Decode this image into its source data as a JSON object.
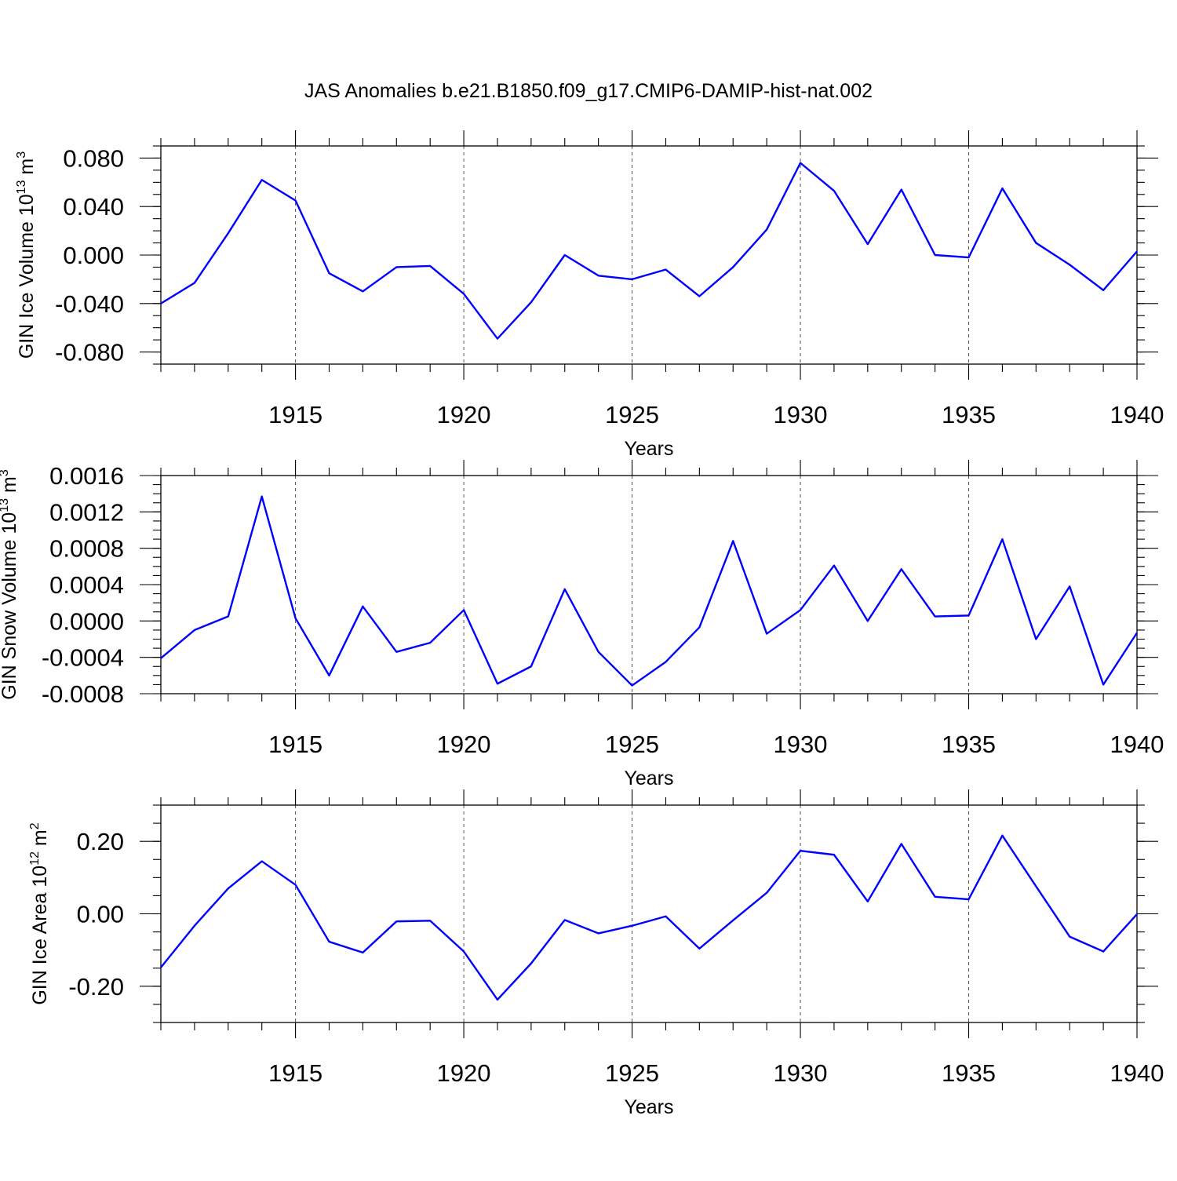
{
  "colors": {
    "series": "#0000ff",
    "grid": "#555555",
    "frame": "#000000"
  },
  "chart_data": [
    {
      "type": "line",
      "title": "JAS Anomalies b.e21.B1850.f09_g17.CMIP6-DAMIP-hist-nat.002",
      "xlabel": "Years",
      "ylabel_main": "GIN Ice Volume 10",
      "ylabel_exp": "13",
      "ylabel_unit": " m",
      "ylabel_unit_exp": "3",
      "xlim": [
        1911,
        1940
      ],
      "ylim": [
        -0.09,
        0.09
      ],
      "x_ticks": [
        1915,
        1920,
        1925,
        1930,
        1935,
        1940
      ],
      "x_tick_labels": [
        "1915",
        "1920",
        "1925",
        "1930",
        "1935",
        "1940"
      ],
      "y_ticks": [
        -0.08,
        -0.04,
        0.0,
        0.04,
        0.08
      ],
      "y_tick_labels": [
        "-0.080",
        "-0.040",
        "0.000",
        "0.040",
        "0.080"
      ],
      "y_minor_step": 0.01,
      "grid": "vertical dashed at major x ticks",
      "series": [
        {
          "name": "GIN Ice Volume",
          "x": [
            1911,
            1912,
            1913,
            1914,
            1915,
            1916,
            1917,
            1918,
            1919,
            1920,
            1921,
            1922,
            1923,
            1924,
            1925,
            1926,
            1927,
            1928,
            1929,
            1930,
            1931,
            1932,
            1933,
            1934,
            1935,
            1936,
            1937,
            1938,
            1939,
            1940
          ],
          "values": [
            -0.04,
            -0.023,
            0.018,
            0.062,
            0.045,
            -0.015,
            -0.03,
            -0.01,
            -0.009,
            -0.032,
            -0.069,
            -0.039,
            0.0,
            -0.017,
            -0.02,
            -0.012,
            -0.034,
            -0.01,
            0.021,
            0.076,
            0.053,
            0.009,
            0.054,
            0.0,
            -0.002,
            0.055,
            0.01,
            -0.008,
            -0.029,
            0.003
          ]
        }
      ]
    },
    {
      "type": "line",
      "title": "",
      "xlabel": "Years",
      "ylabel_main": "GIN Snow Volume 10",
      "ylabel_exp": "13",
      "ylabel_unit": " m",
      "ylabel_unit_exp": "3",
      "xlim": [
        1911,
        1940
      ],
      "ylim": [
        -0.0008,
        0.0016
      ],
      "x_ticks": [
        1915,
        1920,
        1925,
        1930,
        1935,
        1940
      ],
      "x_tick_labels": [
        "1915",
        "1920",
        "1925",
        "1930",
        "1935",
        "1940"
      ],
      "y_ticks": [
        -0.0008,
        -0.0004,
        0.0,
        0.0004,
        0.0008,
        0.0012,
        0.0016
      ],
      "y_tick_labels": [
        "-0.0008",
        "-0.0004",
        "0.0000",
        "0.0004",
        "0.0008",
        "0.0012",
        "0.0016"
      ],
      "y_minor_step": 0.0001,
      "grid": "vertical dashed at major x ticks",
      "series": [
        {
          "name": "GIN Snow Volume",
          "x": [
            1911,
            1912,
            1913,
            1914,
            1915,
            1916,
            1917,
            1918,
            1919,
            1920,
            1921,
            1922,
            1923,
            1924,
            1925,
            1926,
            1927,
            1928,
            1929,
            1930,
            1931,
            1932,
            1933,
            1934,
            1935,
            1936,
            1937,
            1938,
            1939,
            1940
          ],
          "values": [
            -0.00041,
            -0.0001,
            5e-05,
            0.00137,
            3e-05,
            -0.0006,
            0.00016,
            -0.00034,
            -0.00024,
            0.00012,
            -0.00069,
            -0.0005,
            0.00035,
            -0.00034,
            -0.00071,
            -0.00045,
            -7e-05,
            0.00088,
            -0.00014,
            0.00012,
            0.00061,
            0.0,
            0.00057,
            5e-05,
            6e-05,
            0.0009,
            -0.0002,
            0.00038,
            -0.0007,
            -0.00013
          ]
        }
      ]
    },
    {
      "type": "line",
      "title": "",
      "xlabel": "Years",
      "ylabel_main": "GIN Ice Area 10",
      "ylabel_exp": "12",
      "ylabel_unit": " m",
      "ylabel_unit_exp": "2",
      "xlim": [
        1911,
        1940
      ],
      "ylim": [
        -0.3,
        0.3
      ],
      "x_ticks": [
        1915,
        1920,
        1925,
        1930,
        1935,
        1940
      ],
      "x_tick_labels": [
        "1915",
        "1920",
        "1925",
        "1930",
        "1935",
        "1940"
      ],
      "y_ticks": [
        -0.2,
        0.0,
        0.2
      ],
      "y_tick_labels": [
        "-0.20",
        "0.00",
        "0.20"
      ],
      "y_minor_step": 0.05,
      "grid": "vertical dashed at major x ticks",
      "series": [
        {
          "name": "GIN Ice Area",
          "x": [
            1911,
            1912,
            1913,
            1914,
            1915,
            1916,
            1917,
            1918,
            1919,
            1920,
            1921,
            1922,
            1923,
            1924,
            1925,
            1926,
            1927,
            1928,
            1929,
            1930,
            1931,
            1932,
            1933,
            1934,
            1935,
            1936,
            1937,
            1938,
            1939,
            1940
          ],
          "values": [
            -0.148,
            -0.033,
            0.07,
            0.145,
            0.08,
            -0.077,
            -0.107,
            -0.021,
            -0.019,
            -0.104,
            -0.237,
            -0.137,
            -0.017,
            -0.054,
            -0.033,
            -0.007,
            -0.096,
            -0.018,
            0.058,
            0.174,
            0.163,
            0.034,
            0.193,
            0.047,
            0.04,
            0.216,
            0.076,
            -0.063,
            -0.104,
            -0.001
          ]
        }
      ]
    }
  ]
}
